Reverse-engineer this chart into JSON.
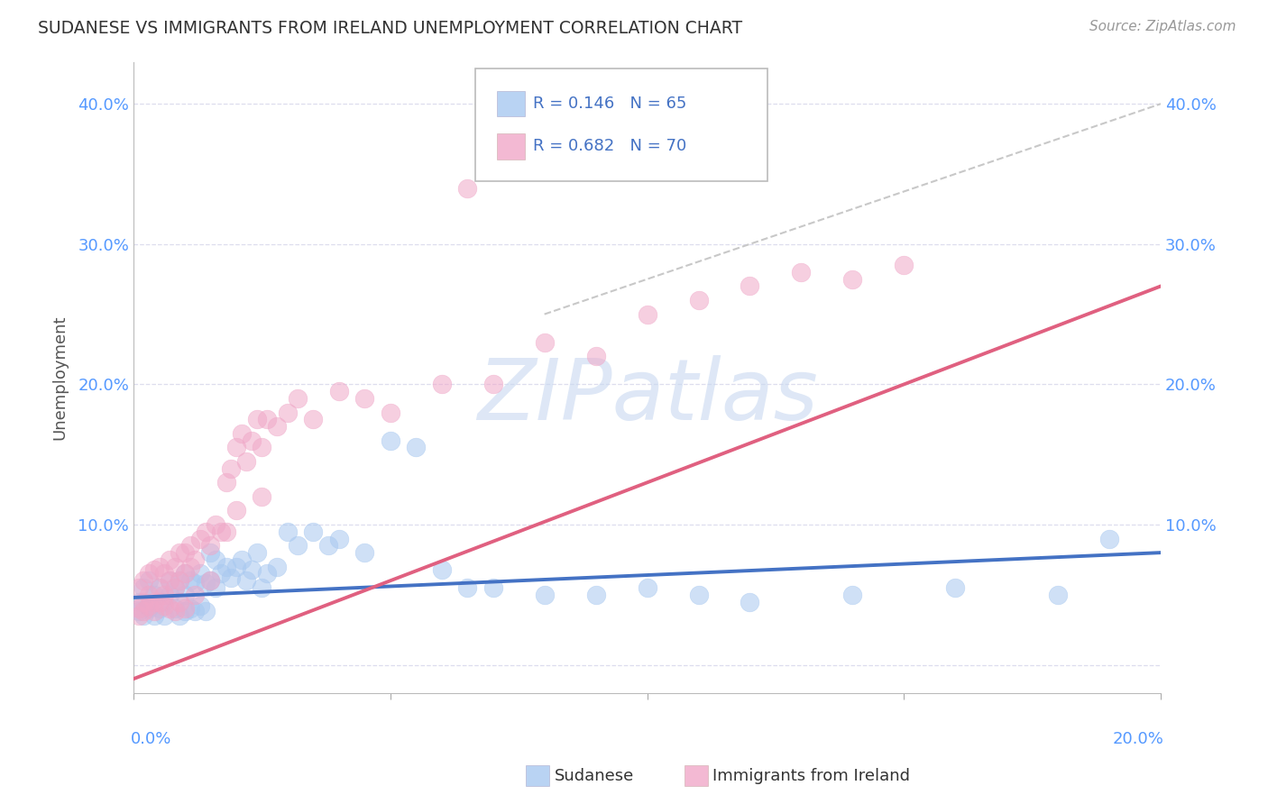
{
  "title": "SUDANESE VS IMMIGRANTS FROM IRELAND UNEMPLOYMENT CORRELATION CHART",
  "source": "Source: ZipAtlas.com",
  "ylabel": "Unemployment",
  "y_ticks": [
    0.0,
    0.1,
    0.2,
    0.3,
    0.4
  ],
  "y_tick_labels": [
    "",
    "10.0%",
    "20.0%",
    "30.0%",
    "40.0%"
  ],
  "x_lim": [
    0.0,
    0.2
  ],
  "y_lim": [
    -0.02,
    0.43
  ],
  "legend_entries": [
    {
      "label": "R = 0.146   N = 65",
      "color": "#5b8fd4"
    },
    {
      "label": "R = 0.682   N = 70",
      "color": "#d45b8f"
    }
  ],
  "legend_labels": [
    "Sudanese",
    "Immigrants from Ireland"
  ],
  "blue_scatter_x": [
    0.001,
    0.002,
    0.002,
    0.003,
    0.003,
    0.004,
    0.004,
    0.005,
    0.005,
    0.006,
    0.006,
    0.007,
    0.007,
    0.008,
    0.008,
    0.009,
    0.009,
    0.01,
    0.01,
    0.01,
    0.011,
    0.011,
    0.012,
    0.012,
    0.013,
    0.013,
    0.014,
    0.014,
    0.015,
    0.015,
    0.016,
    0.016,
    0.017,
    0.018,
    0.019,
    0.02,
    0.021,
    0.022,
    0.023,
    0.024,
    0.025,
    0.026,
    0.028,
    0.03,
    0.032,
    0.035,
    0.038,
    0.04,
    0.045,
    0.05,
    0.055,
    0.06,
    0.065,
    0.07,
    0.08,
    0.09,
    0.1,
    0.11,
    0.12,
    0.14,
    0.16,
    0.18,
    0.19,
    0.001,
    0.003
  ],
  "blue_scatter_y": [
    0.045,
    0.035,
    0.055,
    0.04,
    0.06,
    0.035,
    0.05,
    0.04,
    0.055,
    0.035,
    0.045,
    0.05,
    0.06,
    0.04,
    0.055,
    0.035,
    0.06,
    0.038,
    0.05,
    0.065,
    0.04,
    0.06,
    0.038,
    0.058,
    0.042,
    0.065,
    0.038,
    0.058,
    0.06,
    0.08,
    0.055,
    0.075,
    0.065,
    0.07,
    0.062,
    0.07,
    0.075,
    0.06,
    0.068,
    0.08,
    0.055,
    0.065,
    0.07,
    0.095,
    0.085,
    0.095,
    0.085,
    0.09,
    0.08,
    0.16,
    0.155,
    0.068,
    0.055,
    0.055,
    0.05,
    0.05,
    0.055,
    0.05,
    0.045,
    0.05,
    0.055,
    0.05,
    0.09,
    0.038,
    0.042
  ],
  "pink_scatter_x": [
    0.001,
    0.001,
    0.002,
    0.002,
    0.003,
    0.003,
    0.004,
    0.004,
    0.005,
    0.005,
    0.006,
    0.006,
    0.007,
    0.007,
    0.008,
    0.008,
    0.009,
    0.009,
    0.01,
    0.01,
    0.011,
    0.011,
    0.012,
    0.013,
    0.014,
    0.015,
    0.016,
    0.017,
    0.018,
    0.019,
    0.02,
    0.021,
    0.022,
    0.023,
    0.024,
    0.025,
    0.026,
    0.028,
    0.03,
    0.032,
    0.035,
    0.04,
    0.045,
    0.05,
    0.06,
    0.07,
    0.08,
    0.09,
    0.1,
    0.11,
    0.12,
    0.13,
    0.14,
    0.15,
    0.001,
    0.002,
    0.003,
    0.004,
    0.005,
    0.006,
    0.007,
    0.008,
    0.009,
    0.01,
    0.012,
    0.015,
    0.018,
    0.02,
    0.025,
    0.065
  ],
  "pink_scatter_y": [
    0.04,
    0.055,
    0.045,
    0.06,
    0.05,
    0.065,
    0.045,
    0.068,
    0.055,
    0.07,
    0.05,
    0.065,
    0.06,
    0.075,
    0.055,
    0.07,
    0.06,
    0.08,
    0.065,
    0.08,
    0.07,
    0.085,
    0.075,
    0.09,
    0.095,
    0.085,
    0.1,
    0.095,
    0.13,
    0.14,
    0.155,
    0.165,
    0.145,
    0.16,
    0.175,
    0.155,
    0.175,
    0.17,
    0.18,
    0.19,
    0.175,
    0.195,
    0.19,
    0.18,
    0.2,
    0.2,
    0.23,
    0.22,
    0.25,
    0.26,
    0.27,
    0.28,
    0.275,
    0.285,
    0.035,
    0.038,
    0.042,
    0.038,
    0.045,
    0.042,
    0.04,
    0.038,
    0.045,
    0.04,
    0.05,
    0.06,
    0.095,
    0.11,
    0.12,
    0.34
  ],
  "blue_line_x": [
    0.0,
    0.2
  ],
  "blue_line_y": [
    0.048,
    0.08
  ],
  "pink_line_x": [
    0.0,
    0.2
  ],
  "pink_line_y": [
    -0.01,
    0.27
  ],
  "ref_line_x": [
    0.08,
    0.2
  ],
  "ref_line_y": [
    0.25,
    0.4
  ],
  "blue_color": "#a8c8f0",
  "pink_color": "#f0a8c8",
  "blue_line_color": "#4472c4",
  "pink_line_color": "#e06080",
  "ref_line_color": "#c8c8c8",
  "watermark_text": "ZIPatlas",
  "watermark_color": "#c8d8f0",
  "background_color": "#ffffff"
}
